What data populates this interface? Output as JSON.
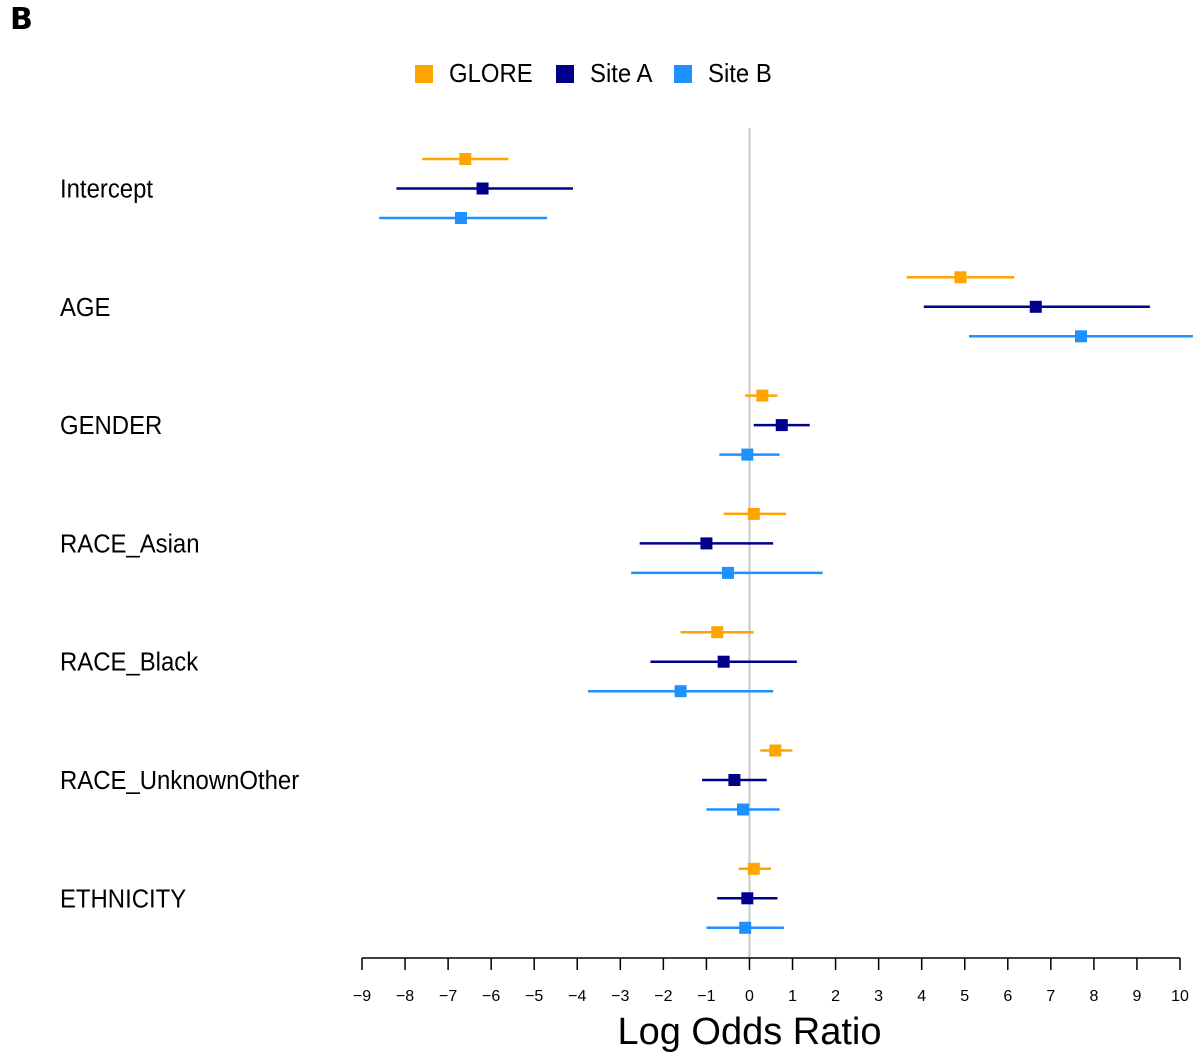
{
  "panel_label": "B",
  "colors": {
    "GLORE": "#FFA500",
    "Site A": "#00008B",
    "Site B": "#1E90FF",
    "zero_line": "#c8c8c8"
  },
  "chart_data": {
    "type": "forest",
    "xlabel": "Log Odds Ratio",
    "xlim": [
      -9,
      10
    ],
    "xticks": [
      -9,
      -8,
      -7,
      -6,
      -5,
      -4,
      -3,
      -2,
      -1,
      0,
      1,
      2,
      3,
      4,
      5,
      6,
      7,
      8,
      9,
      10
    ],
    "xtick_labels": [
      "−9",
      "−8",
      "−7",
      "−6",
      "−5",
      "−4",
      "−3",
      "−2",
      "−1",
      "0",
      "1",
      "2",
      "3",
      "4",
      "5",
      "6",
      "7",
      "8",
      "9",
      "10"
    ],
    "legend_position": "top-center",
    "legend": [
      "GLORE",
      "Site A",
      "Site B"
    ],
    "categories": [
      "Intercept",
      "AGE",
      "GENDER",
      "RACE_Asian",
      "RACE_Black",
      "RACE_UnknownOther",
      "ETHNICITY"
    ],
    "series": [
      {
        "name": "GLORE",
        "estimate": [
          -6.6,
          4.9,
          0.3,
          0.1,
          -0.75,
          0.6,
          0.1
        ],
        "lower": [
          -7.6,
          3.65,
          -0.1,
          -0.6,
          -1.6,
          0.25,
          -0.25
        ],
        "upper": [
          -5.6,
          6.15,
          0.65,
          0.85,
          0.1,
          1.0,
          0.5
        ]
      },
      {
        "name": "Site A",
        "estimate": [
          -6.2,
          6.65,
          0.75,
          -1.0,
          -0.6,
          -0.35,
          -0.05
        ],
        "lower": [
          -8.2,
          4.05,
          0.1,
          -2.55,
          -2.3,
          -1.1,
          -0.75
        ],
        "upper": [
          -4.1,
          9.3,
          1.4,
          0.55,
          1.1,
          0.4,
          0.65
        ]
      },
      {
        "name": "Site B",
        "estimate": [
          -6.7,
          7.7,
          -0.05,
          -0.5,
          -1.6,
          -0.15,
          -0.1
        ],
        "lower": [
          -8.6,
          5.1,
          -0.7,
          -2.75,
          -3.75,
          -1.0,
          -1.0
        ],
        "upper": [
          -4.7,
          10.3,
          0.7,
          1.7,
          0.55,
          0.7,
          0.8
        ]
      }
    ]
  }
}
